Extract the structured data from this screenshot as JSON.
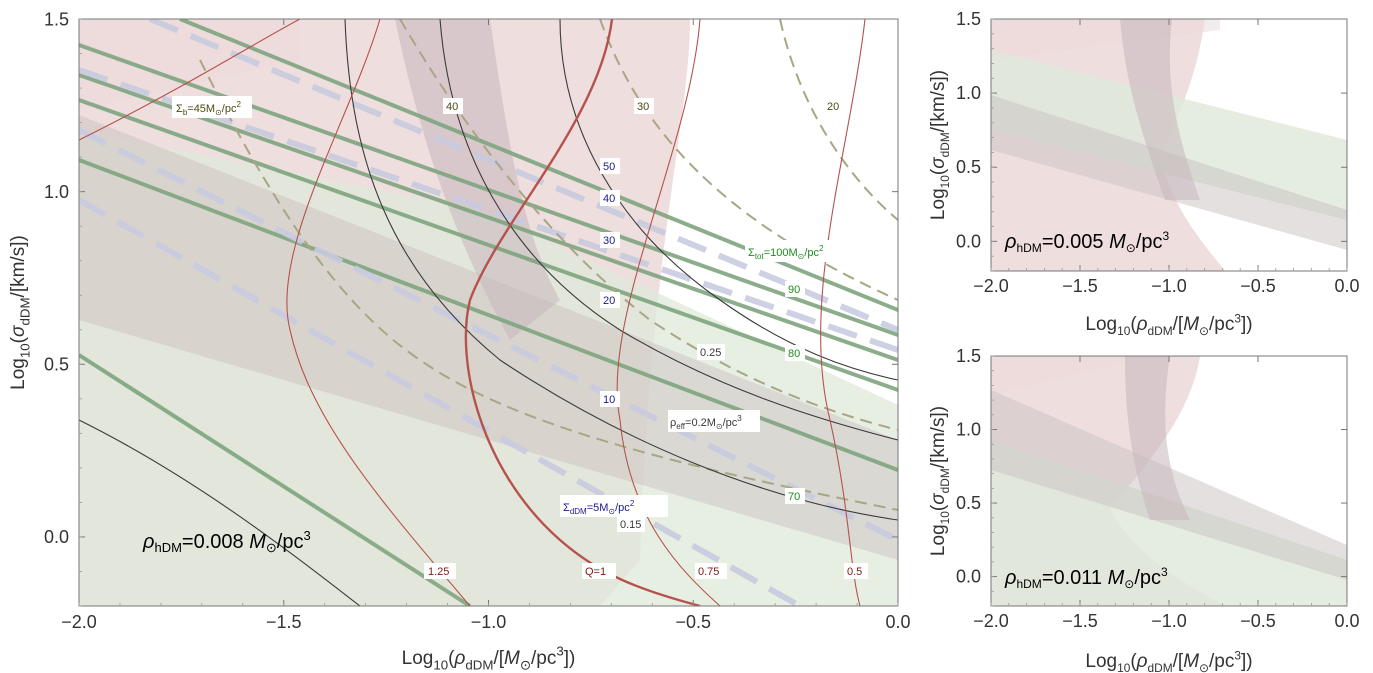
{
  "chart_data": [
    {
      "type": "contour",
      "xlabel": "Log10(ρdDM/[M⊙/pc3])",
      "ylabel": "Log10(σdDM/[km/s])",
      "xlim": [
        -2.0,
        0.0
      ],
      "ylim": [
        -0.2,
        1.5
      ],
      "xticks": [
        "−2.0",
        "−1.5",
        "−1.0",
        "−0.5",
        "0.0"
      ],
      "yticks": [
        "0.0",
        "0.5",
        "1.0",
        "1.5"
      ],
      "annotation": "ρhDM=0.008 M⊙/pc3",
      "annotation_parts": {
        "sym": "ρ",
        "sub": "hDM",
        "mid": "=0.008 ",
        "msym": "M",
        "msub": "⊙",
        "unit": "/pc",
        "sup": "3"
      },
      "contour_families": [
        {
          "name": "Q",
          "color": "#b5524d",
          "labels": [
            "1.25",
            "Q=1",
            "0.75",
            "0.5"
          ]
        },
        {
          "name": "Σb",
          "color": "#9c9a6e",
          "dashed": true,
          "labels": [
            "Σb=45M⊙/pc2",
            "40",
            "30",
            "20"
          ]
        },
        {
          "name": "ρeff",
          "color": "#3a3a3a",
          "labels": [
            "ρeff=0.2M⊙/pc3",
            "0.25",
            "0.15"
          ]
        },
        {
          "name": "ΣdDM",
          "color": "#c7c9dd",
          "dashed": true,
          "labels": [
            "ΣdDM=5M⊙/pc2",
            "10",
            "20",
            "30",
            "40",
            "50"
          ]
        },
        {
          "name": "Σtot",
          "color": "#6f9a6f",
          "labels": [
            "Σtot=100M⊙/pc2",
            "90",
            "80",
            "70"
          ]
        }
      ],
      "colors": {
        "Q": "#b5524d",
        "Sigma_b": "#4a4a10",
        "rho_eff": "#3a3a3a",
        "Sigma_dDM": "#1a1a8c",
        "Sigma_tot": "#1f8a1f",
        "pink_region": "#eddada",
        "green_region": "#e3ece0",
        "gray_region": "#d7d1d1"
      }
    },
    {
      "type": "region",
      "xlabel": "Log10(ρdDM/[M⊙/pc3])",
      "ylabel": "Log10(σdDM/[km/s])",
      "xlim": [
        -2.0,
        0.0
      ],
      "ylim": [
        -0.2,
        1.5
      ],
      "xticks": [
        "−2.0",
        "−1.5",
        "−1.0",
        "−0.5",
        "0.0"
      ],
      "yticks": [
        "0.0",
        "0.5",
        "1.0",
        "1.5"
      ],
      "annotation": "ρhDM=0.005 M⊙/pc3",
      "annotation_parts": {
        "sym": "ρ",
        "sub": "hDM",
        "mid": "=0.005 ",
        "msym": "M",
        "msub": "⊙",
        "unit": "/pc",
        "sup": "3"
      }
    },
    {
      "type": "region",
      "xlabel": "Log10(ρdDM/[M⊙/pc3])",
      "ylabel": "Log10(σdDM/[km/s])",
      "xlim": [
        -2.0,
        0.0
      ],
      "ylim": [
        -0.2,
        1.5
      ],
      "xticks": [
        "−2.0",
        "−1.5",
        "−1.0",
        "−0.5",
        "0.0"
      ],
      "yticks": [
        "0.0",
        "0.5",
        "1.0",
        "1.5"
      ],
      "annotation": "ρhDM=0.011 M⊙/pc3",
      "annotation_parts": {
        "sym": "ρ",
        "sub": "hDM",
        "mid": "=0.011 ",
        "msym": "M",
        "msub": "⊙",
        "unit": "/pc",
        "sup": "3"
      }
    }
  ]
}
